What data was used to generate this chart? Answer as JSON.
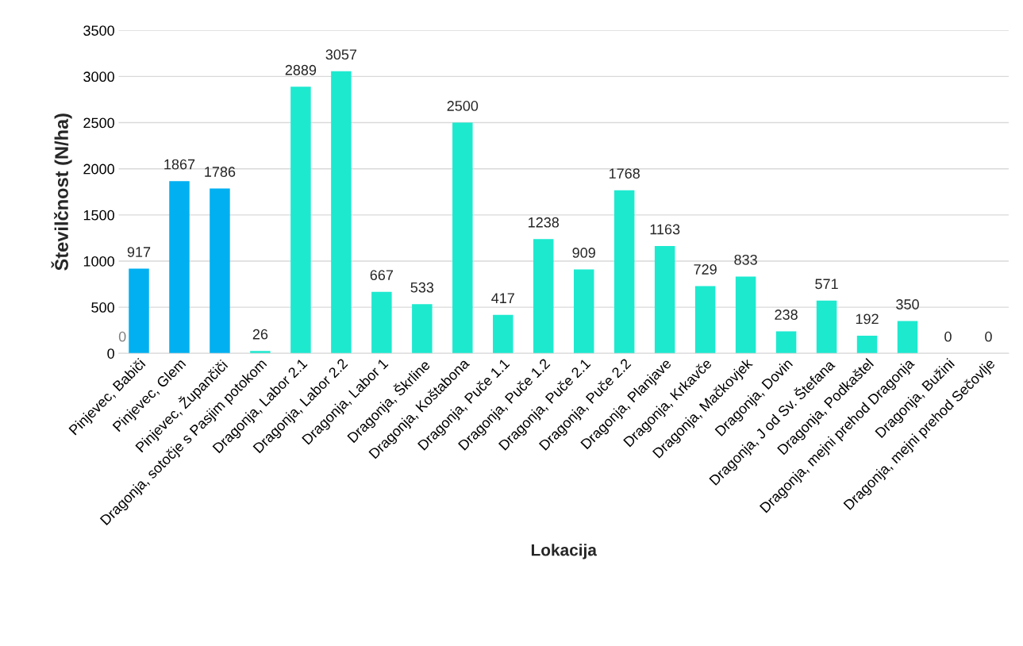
{
  "chart_data": {
    "type": "bar",
    "xlabel": "Lokacija",
    "ylabel": "Številčnost (N/ha)",
    "categories": [
      "Pinjevec, Babiči",
      "Pinjevec, Glem",
      "Pinjevec, Župančiči",
      "Dragonja, sotočje s Pasjim potokom",
      "Dragonja, Labor 2.1",
      "Dragonja, Labor 2.2",
      "Dragonja, Labor 1",
      "Dragonja, Škrline",
      "Dragonja, Koštabona",
      "Dragonja, Puče 1.1",
      "Dragonja, Puče 1.2",
      "Dragonja, Puče 2.1",
      "Dragonja, Puče 2.2",
      "Dragonja, Planjave",
      "Dragonja, Krkavče",
      "Dragonja, Mačkovjek",
      "Dragonja, Dovin",
      "Dragonja, J od Sv. Štefana",
      "Dragonja, Podkaštel",
      "Dragonja, mejni prehod Dragonja",
      "Dragonja, Bužini",
      "Dragonja, mejni prehod Sečovlje"
    ],
    "values": [
      917,
      1867,
      1786,
      26,
      2889,
      3057,
      667,
      533,
      2500,
      417,
      1238,
      909,
      1768,
      1163,
      729,
      833,
      238,
      571,
      192,
      350,
      0,
      0
    ],
    "colors": [
      "#00b0f0",
      "#00b0f0",
      "#00b0f0",
      "#1de9cf",
      "#1de9cf",
      "#1de9cf",
      "#1de9cf",
      "#1de9cf",
      "#1de9cf",
      "#1de9cf",
      "#1de9cf",
      "#1de9cf",
      "#1de9cf",
      "#1de9cf",
      "#1de9cf",
      "#1de9cf",
      "#1de9cf",
      "#1de9cf",
      "#1de9cf",
      "#1de9cf",
      "#1de9cf",
      "#1de9cf"
    ],
    "data_labels": true,
    "annotations": [
      {
        "text": "0",
        "x": "Pinjevec, Babiči",
        "y": 0
      }
    ],
    "ylim": [
      0,
      3500
    ],
    "yticks": [
      0,
      500,
      1000,
      1500,
      2000,
      2500,
      3000,
      3500
    ],
    "grid": "y",
    "legend": false
  }
}
